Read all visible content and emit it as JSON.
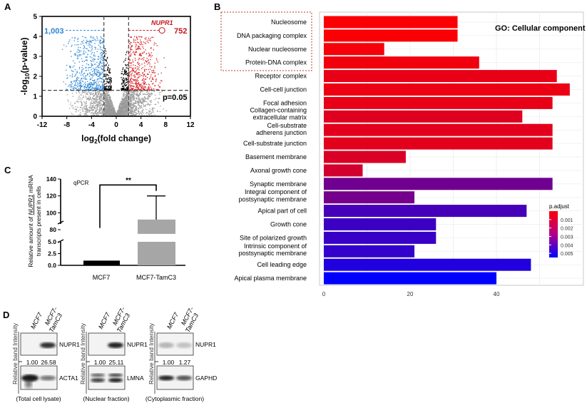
{
  "panel_labels": {
    "a": "A",
    "b": "B",
    "c": "C",
    "d": "D"
  },
  "chart_data": [
    {
      "type": "scatter",
      "panel": "A",
      "xlabel": "log2(fold change)",
      "ylabel": "-log10(p-value)",
      "xlim": [
        -12,
        12
      ],
      "ylim": [
        0,
        5
      ],
      "xticks": [
        "-12",
        "-8",
        "-4",
        "0",
        "4",
        "8",
        "12"
      ],
      "yticks": [
        "0",
        "1",
        "2",
        "3",
        "4",
        "5"
      ],
      "fold_change_thresholds": [
        -2,
        2
      ],
      "p_threshold_log": 1.3,
      "p_threshold_label": "p=0.05",
      "down_count_label": "1,003",
      "up_count_label": "752",
      "highlight_gene": {
        "name": "NUPR1",
        "x": 7.4,
        "y": 4.3
      },
      "colors": {
        "down": "#2e86d6",
        "up": "#d7191c",
        "sig_small_fc": "#000000",
        "nonsig": "#9a9a9a"
      }
    },
    {
      "type": "bar",
      "panel": "B",
      "orientation": "horizontal",
      "title": "GO: Cellular component",
      "xticks": [
        "0",
        "20",
        "40"
      ],
      "xlim": [
        0,
        58
      ],
      "legend_title": "p.adjust",
      "legend_ticks": [
        "0.001",
        "0.002",
        "0.003",
        "0.004",
        "0.005"
      ],
      "legend_placement": "right",
      "color_scale": {
        "low": "#ff0000",
        "high": "#0000ff",
        "range": [
          0,
          0.0055
        ]
      },
      "highlighted_categories": 4,
      "categories": [
        [
          "Nucleosome"
        ],
        [
          "DNA packaging complex"
        ],
        [
          "Nuclear nucleosome"
        ],
        [
          "Protein-DNA complex"
        ],
        [
          "Receptor complex"
        ],
        [
          "Cell-cell junction"
        ],
        [
          "Focal adhesion"
        ],
        [
          "Collagen-containing",
          "extracellular matrix"
        ],
        [
          "Cell-substrate",
          "adherens junction"
        ],
        [
          "Cell-substrate junction"
        ],
        [
          "Basement membrane"
        ],
        [
          "Axonal growth cone"
        ],
        [
          "Synaptic membrane"
        ],
        [
          "Integral component of",
          "postsynaptic membrane"
        ],
        [
          "Apical part of cell"
        ],
        [
          "Growth cone"
        ],
        [
          "Site of polarized growth"
        ],
        [
          "Intrinsic component of",
          "postsynaptic membrane"
        ],
        [
          "Cell leading edge"
        ],
        [
          "Apical plasma membrane"
        ]
      ],
      "values": [
        31,
        31,
        14,
        36,
        54,
        57,
        53,
        46,
        53,
        53,
        19,
        9,
        53,
        21,
        47,
        26,
        26,
        21,
        48,
        40
      ],
      "p_adjust": [
        0.0001,
        0.0001,
        0.0002,
        0.0003,
        0.0005,
        0.0004,
        0.0005,
        0.0007,
        0.0006,
        0.0006,
        0.0008,
        0.001,
        0.0031,
        0.003,
        0.004,
        0.0042,
        0.0043,
        0.0044,
        0.0048,
        0.0055
      ]
    },
    {
      "type": "bar",
      "panel": "C",
      "annotation": "qPCR",
      "ylabel_parts": [
        "Relative amount of ",
        "NUPR1",
        " mRNA",
        "transcripts present in cells"
      ],
      "categories": [
        "MCF7",
        "MCF7-TamC3"
      ],
      "values": [
        1,
        92
      ],
      "error_upper": [
        null,
        120
      ],
      "yticks_lower": [
        "0.0",
        "2.5",
        "5.0"
      ],
      "yticks_upper": [
        "80",
        "100",
        "120",
        "140"
      ],
      "ylim_lower": [
        0,
        5
      ],
      "ylim_upper": [
        75,
        140
      ],
      "significance": "**",
      "colors": [
        "#000000",
        "#a6a6a6"
      ]
    }
  ],
  "westerns": {
    "ylabel": "Relative band Intensity",
    "lanes": [
      "MCF7",
      "MCF7-",
      "TamC3"
    ],
    "panels": [
      {
        "target": "NUPR1",
        "values": [
          "1.00",
          "26.58"
        ],
        "loading": "ACTA1",
        "caption": "(Total cell lysate)"
      },
      {
        "target": "NUPR1",
        "values": [
          "1.00",
          "25.11"
        ],
        "loading": "LMNA",
        "caption": "(Nuclear fraction)"
      },
      {
        "target": "NUPR1",
        "values": [
          "1.00",
          "1.27"
        ],
        "loading": "GAPHD",
        "caption": "(Cytoplasmic fraction)"
      }
    ]
  }
}
